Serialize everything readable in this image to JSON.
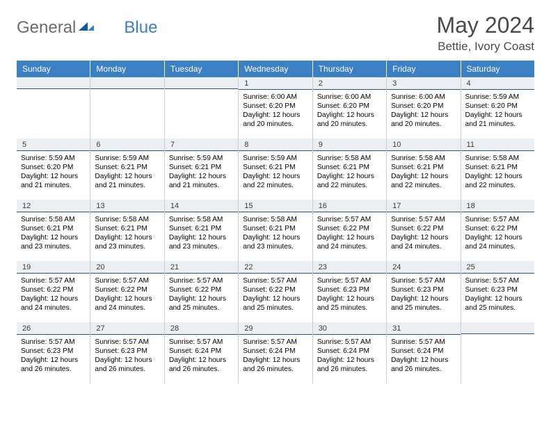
{
  "logo": {
    "text1": "General",
    "text2": "Blue"
  },
  "header": {
    "month": "May 2024",
    "location": "Bettie, Ivory Coast"
  },
  "colors": {
    "header_bg": "#3b7fc4",
    "header_text": "#ffffff",
    "daynum_bg": "#eceff1",
    "daynum_border": "#2f4f7f",
    "grid_border": "#cfcfcf",
    "body_text": "#000000",
    "title_text": "#4a4a4a"
  },
  "day_labels": [
    "Sunday",
    "Monday",
    "Tuesday",
    "Wednesday",
    "Thursday",
    "Friday",
    "Saturday"
  ],
  "weeks": [
    [
      {
        "blank": true
      },
      {
        "blank": true
      },
      {
        "blank": true
      },
      {
        "n": "1",
        "sr": "6:00 AM",
        "ss": "6:20 PM",
        "dl": "12 hours and 20 minutes."
      },
      {
        "n": "2",
        "sr": "6:00 AM",
        "ss": "6:20 PM",
        "dl": "12 hours and 20 minutes."
      },
      {
        "n": "3",
        "sr": "6:00 AM",
        "ss": "6:20 PM",
        "dl": "12 hours and 20 minutes."
      },
      {
        "n": "4",
        "sr": "5:59 AM",
        "ss": "6:20 PM",
        "dl": "12 hours and 21 minutes."
      }
    ],
    [
      {
        "n": "5",
        "sr": "5:59 AM",
        "ss": "6:20 PM",
        "dl": "12 hours and 21 minutes."
      },
      {
        "n": "6",
        "sr": "5:59 AM",
        "ss": "6:21 PM",
        "dl": "12 hours and 21 minutes."
      },
      {
        "n": "7",
        "sr": "5:59 AM",
        "ss": "6:21 PM",
        "dl": "12 hours and 21 minutes."
      },
      {
        "n": "8",
        "sr": "5:59 AM",
        "ss": "6:21 PM",
        "dl": "12 hours and 22 minutes."
      },
      {
        "n": "9",
        "sr": "5:58 AM",
        "ss": "6:21 PM",
        "dl": "12 hours and 22 minutes."
      },
      {
        "n": "10",
        "sr": "5:58 AM",
        "ss": "6:21 PM",
        "dl": "12 hours and 22 minutes."
      },
      {
        "n": "11",
        "sr": "5:58 AM",
        "ss": "6:21 PM",
        "dl": "12 hours and 22 minutes."
      }
    ],
    [
      {
        "n": "12",
        "sr": "5:58 AM",
        "ss": "6:21 PM",
        "dl": "12 hours and 23 minutes."
      },
      {
        "n": "13",
        "sr": "5:58 AM",
        "ss": "6:21 PM",
        "dl": "12 hours and 23 minutes."
      },
      {
        "n": "14",
        "sr": "5:58 AM",
        "ss": "6:21 PM",
        "dl": "12 hours and 23 minutes."
      },
      {
        "n": "15",
        "sr": "5:58 AM",
        "ss": "6:21 PM",
        "dl": "12 hours and 23 minutes."
      },
      {
        "n": "16",
        "sr": "5:57 AM",
        "ss": "6:22 PM",
        "dl": "12 hours and 24 minutes."
      },
      {
        "n": "17",
        "sr": "5:57 AM",
        "ss": "6:22 PM",
        "dl": "12 hours and 24 minutes."
      },
      {
        "n": "18",
        "sr": "5:57 AM",
        "ss": "6:22 PM",
        "dl": "12 hours and 24 minutes."
      }
    ],
    [
      {
        "n": "19",
        "sr": "5:57 AM",
        "ss": "6:22 PM",
        "dl": "12 hours and 24 minutes."
      },
      {
        "n": "20",
        "sr": "5:57 AM",
        "ss": "6:22 PM",
        "dl": "12 hours and 24 minutes."
      },
      {
        "n": "21",
        "sr": "5:57 AM",
        "ss": "6:22 PM",
        "dl": "12 hours and 25 minutes."
      },
      {
        "n": "22",
        "sr": "5:57 AM",
        "ss": "6:22 PM",
        "dl": "12 hours and 25 minutes."
      },
      {
        "n": "23",
        "sr": "5:57 AM",
        "ss": "6:23 PM",
        "dl": "12 hours and 25 minutes."
      },
      {
        "n": "24",
        "sr": "5:57 AM",
        "ss": "6:23 PM",
        "dl": "12 hours and 25 minutes."
      },
      {
        "n": "25",
        "sr": "5:57 AM",
        "ss": "6:23 PM",
        "dl": "12 hours and 25 minutes."
      }
    ],
    [
      {
        "n": "26",
        "sr": "5:57 AM",
        "ss": "6:23 PM",
        "dl": "12 hours and 26 minutes."
      },
      {
        "n": "27",
        "sr": "5:57 AM",
        "ss": "6:23 PM",
        "dl": "12 hours and 26 minutes."
      },
      {
        "n": "28",
        "sr": "5:57 AM",
        "ss": "6:24 PM",
        "dl": "12 hours and 26 minutes."
      },
      {
        "n": "29",
        "sr": "5:57 AM",
        "ss": "6:24 PM",
        "dl": "12 hours and 26 minutes."
      },
      {
        "n": "30",
        "sr": "5:57 AM",
        "ss": "6:24 PM",
        "dl": "12 hours and 26 minutes."
      },
      {
        "n": "31",
        "sr": "5:57 AM",
        "ss": "6:24 PM",
        "dl": "12 hours and 26 minutes."
      },
      {
        "blank": true
      }
    ]
  ],
  "labels": {
    "sunrise": "Sunrise: ",
    "sunset": "Sunset: ",
    "daylight": "Daylight: "
  }
}
